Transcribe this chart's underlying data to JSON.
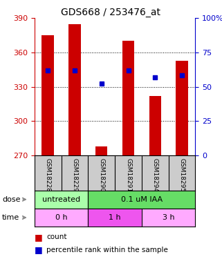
{
  "title": "GDS668 / 253476_at",
  "samples": [
    "GSM18228",
    "GSM18229",
    "GSM18290",
    "GSM18291",
    "GSM18294",
    "GSM18295"
  ],
  "bar_bottoms": [
    270,
    270,
    270,
    270,
    270,
    270
  ],
  "bar_tops": [
    375,
    385,
    278,
    370,
    322,
    353
  ],
  "blue_dots_y": [
    344,
    344,
    333,
    344,
    338,
    340
  ],
  "ylim": [
    270,
    390
  ],
  "yticks_left": [
    270,
    300,
    330,
    360,
    390
  ],
  "yticks_right_vals": [
    0,
    25,
    50,
    75,
    100
  ],
  "bar_color": "#cc0000",
  "dot_color": "#0000cc",
  "left_tick_color": "#cc0000",
  "right_tick_color": "#0000cc",
  "dose_labels": [
    [
      "untreated",
      0,
      2
    ],
    [
      "0.1 uM IAA",
      2,
      6
    ]
  ],
  "dose_colors": [
    "#aaffaa",
    "#66dd66"
  ],
  "time_colors": [
    "#ffaaff",
    "#ee55ee",
    "#ffaaff"
  ],
  "time_labels": [
    [
      "0 h",
      0,
      2
    ],
    [
      "1 h",
      2,
      4
    ],
    [
      "3 h",
      4,
      6
    ]
  ],
  "sample_bg": "#cccccc",
  "legend_items": [
    "count",
    "percentile rank within the sample"
  ],
  "grid_color": "black",
  "grid_linestyle": "dotted"
}
